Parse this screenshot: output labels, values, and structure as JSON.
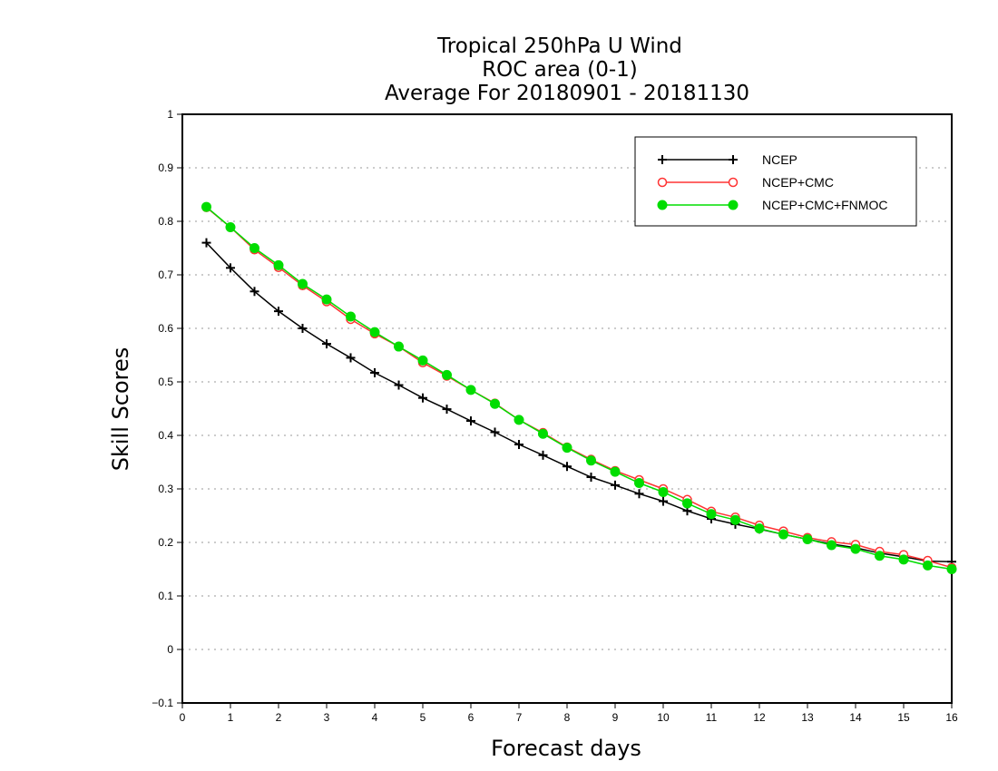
{
  "chart_data": {
    "type": "line",
    "title": [
      "Tropical 250hPa U Wind",
      "ROC area (0-1)",
      "Average For 20180901 - 20181130"
    ],
    "xlabel": "Forecast days",
    "ylabel": "Skill Scores",
    "xlim": [
      0,
      16
    ],
    "ylim": [
      -0.1,
      1
    ],
    "x_ticks": [
      "0",
      "1",
      "2",
      "3",
      "4",
      "5",
      "6",
      "7",
      "8",
      "9",
      "10",
      "11",
      "12",
      "13",
      "14",
      "15",
      "16"
    ],
    "y_ticks": [
      "−0.1",
      "0",
      "0.1",
      "0.2",
      "0.3",
      "0.4",
      "0.5",
      "0.6",
      "0.7",
      "0.8",
      "0.9",
      "1"
    ],
    "grid": "horizontal-dotted",
    "legend_position": "top-right",
    "x": [
      0.5,
      1,
      1.5,
      2,
      2.5,
      3,
      3.5,
      4,
      4.5,
      5,
      5.5,
      6,
      6.5,
      7,
      7.5,
      8,
      8.5,
      9,
      9.5,
      10,
      10.5,
      11,
      11.5,
      12,
      12.5,
      13,
      13.5,
      14,
      14.5,
      15,
      15.5,
      16
    ],
    "series": [
      {
        "name": "NCEP",
        "color": "#000000",
        "marker": "plus",
        "values": [
          0.76,
          0.713,
          0.669,
          0.632,
          0.6,
          0.571,
          0.545,
          0.517,
          0.494,
          0.47,
          0.449,
          0.427,
          0.406,
          0.383,
          0.363,
          0.342,
          0.322,
          0.307,
          0.291,
          0.277,
          0.259,
          0.244,
          0.234,
          0.225,
          0.215,
          0.206,
          0.197,
          0.19,
          0.18,
          0.173,
          0.165,
          0.164
        ]
      },
      {
        "name": "NCEP+CMC",
        "color": "#ff3333",
        "marker": "open-circle",
        "values": [
          0.826,
          0.789,
          0.747,
          0.714,
          0.68,
          0.65,
          0.617,
          0.59,
          0.566,
          0.536,
          0.511,
          0.485,
          0.46,
          0.429,
          0.405,
          0.378,
          0.355,
          0.334,
          0.317,
          0.3,
          0.28,
          0.258,
          0.247,
          0.232,
          0.221,
          0.209,
          0.201,
          0.196,
          0.183,
          0.177,
          0.166,
          0.153
        ]
      },
      {
        "name": "NCEP+CMC+FNMOC",
        "color": "#00dd00",
        "marker": "filled-circle",
        "values": [
          0.827,
          0.789,
          0.75,
          0.718,
          0.683,
          0.654,
          0.622,
          0.593,
          0.566,
          0.54,
          0.513,
          0.485,
          0.459,
          0.429,
          0.403,
          0.377,
          0.353,
          0.332,
          0.311,
          0.294,
          0.273,
          0.253,
          0.242,
          0.226,
          0.215,
          0.206,
          0.195,
          0.188,
          0.175,
          0.168,
          0.157,
          0.15
        ]
      }
    ]
  }
}
